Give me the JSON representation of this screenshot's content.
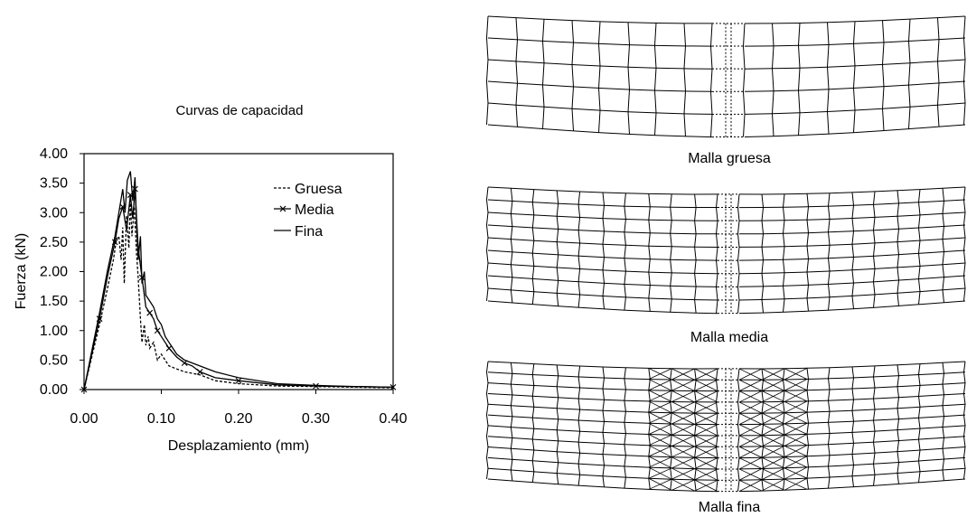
{
  "chart_data": {
    "type": "line",
    "title": "Curvas de capacidad",
    "xlabel": "Desplazamiento (mm)",
    "ylabel": "Fuerza (kN)",
    "xlim": [
      0,
      0.4
    ],
    "ylim": [
      0,
      4
    ],
    "x_ticks": [
      "0.00",
      "0.10",
      "0.20",
      "0.30",
      "0.40"
    ],
    "y_ticks": [
      "0.00",
      "0.50",
      "1.00",
      "1.50",
      "2.00",
      "2.50",
      "3.00",
      "3.50",
      "4.00"
    ],
    "grid": false,
    "legend_position": "top-right",
    "series": [
      {
        "name": "Gruesa",
        "style": "dotted",
        "x": [
          0,
          0.01,
          0.02,
          0.03,
          0.038,
          0.042,
          0.045,
          0.048,
          0.05,
          0.052,
          0.055,
          0.058,
          0.06,
          0.062,
          0.065,
          0.068,
          0.07,
          0.073,
          0.075,
          0.078,
          0.08,
          0.083,
          0.085,
          0.09,
          0.095,
          0.1,
          0.11,
          0.12,
          0.13,
          0.15,
          0.17,
          0.2,
          0.25,
          0.3,
          0.35,
          0.4
        ],
        "y": [
          0,
          0.55,
          1.1,
          1.7,
          2.2,
          2.55,
          2.6,
          2.2,
          2.75,
          1.8,
          2.95,
          2.4,
          3.2,
          2.6,
          3.1,
          2.3,
          1.9,
          1.2,
          0.8,
          1.1,
          0.75,
          0.9,
          0.7,
          0.8,
          0.5,
          0.6,
          0.4,
          0.35,
          0.3,
          0.25,
          0.15,
          0.1,
          0.06,
          0.05,
          0.04,
          0.03
        ]
      },
      {
        "name": "Media",
        "style": "solid-marker-x",
        "x": [
          0,
          0.01,
          0.02,
          0.03,
          0.04,
          0.045,
          0.05,
          0.055,
          0.06,
          0.063,
          0.066,
          0.07,
          0.075,
          0.08,
          0.085,
          0.09,
          0.095,
          0.1,
          0.11,
          0.12,
          0.13,
          0.14,
          0.15,
          0.17,
          0.2,
          0.25,
          0.3,
          0.35,
          0.4
        ],
        "y": [
          0,
          0.6,
          1.2,
          1.9,
          2.5,
          2.9,
          3.1,
          2.7,
          3.3,
          2.9,
          3.4,
          2.4,
          1.9,
          1.4,
          1.3,
          1.2,
          1.0,
          0.9,
          0.7,
          0.55,
          0.45,
          0.4,
          0.3,
          0.2,
          0.15,
          0.08,
          0.06,
          0.05,
          0.04
        ]
      },
      {
        "name": "Fina",
        "style": "solid",
        "x": [
          0,
          0.01,
          0.02,
          0.03,
          0.04,
          0.045,
          0.05,
          0.053,
          0.056,
          0.06,
          0.063,
          0.066,
          0.068,
          0.07,
          0.073,
          0.075,
          0.078,
          0.08,
          0.085,
          0.09,
          0.095,
          0.1,
          0.105,
          0.11,
          0.12,
          0.13,
          0.14,
          0.15,
          0.17,
          0.2,
          0.25,
          0.3,
          0.35,
          0.4
        ],
        "y": [
          0,
          0.65,
          1.3,
          2.0,
          2.6,
          3.0,
          3.4,
          3.0,
          3.55,
          3.7,
          3.2,
          3.6,
          2.8,
          2.2,
          2.6,
          1.8,
          2.0,
          1.6,
          1.5,
          1.4,
          1.2,
          1.1,
          0.9,
          0.8,
          0.6,
          0.5,
          0.45,
          0.4,
          0.3,
          0.2,
          0.1,
          0.07,
          0.05,
          0.04
        ]
      }
    ]
  },
  "meshes": [
    {
      "label": "Malla gruesa",
      "variant": "gruesa"
    },
    {
      "label": "Malla media",
      "variant": "media"
    },
    {
      "label": "Malla fina",
      "variant": "fina"
    }
  ]
}
